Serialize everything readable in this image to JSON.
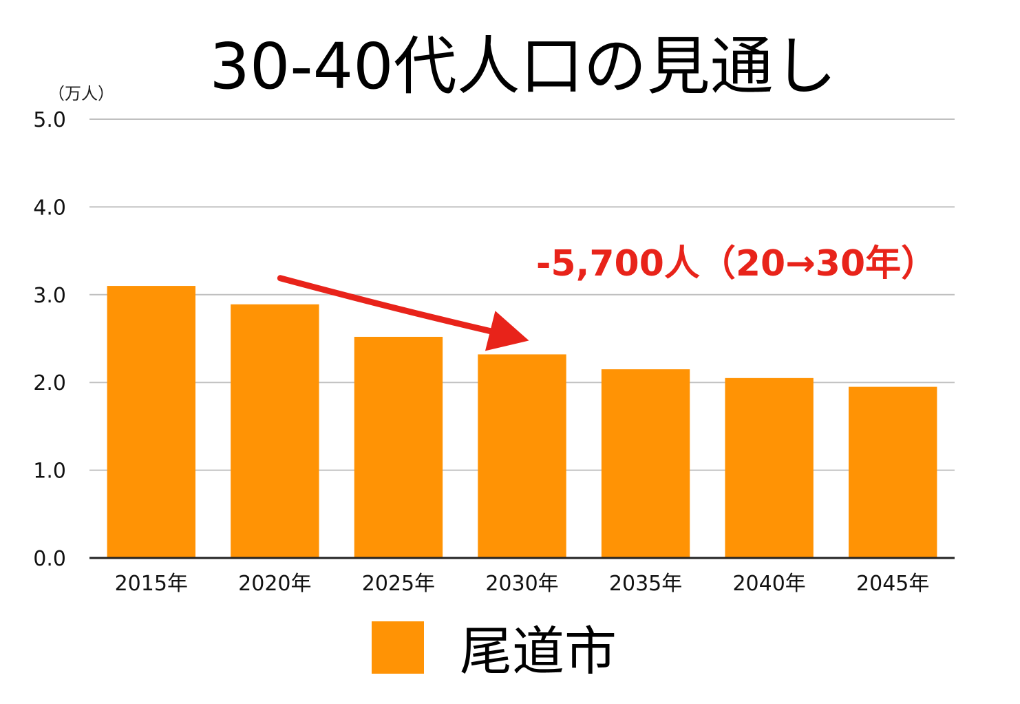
{
  "chart_data": {
    "type": "bar",
    "title": "30-40代人口の見通し",
    "y_unit": "（万人）",
    "categories": [
      "2015年",
      "2020年",
      "2025年",
      "2030年",
      "2035年",
      "2040年",
      "2045年"
    ],
    "series": [
      {
        "name": "尾道市",
        "values": [
          3.1,
          2.89,
          2.52,
          2.32,
          2.15,
          2.05,
          1.95
        ],
        "color": "#ff9305"
      }
    ],
    "ylim": [
      0,
      5
    ],
    "yticks": [
      0,
      1,
      2,
      3,
      4,
      5
    ],
    "ytick_labels": [
      "0.0",
      "1.0",
      "2.0",
      "3.0",
      "4.0",
      "5.0"
    ],
    "grid": true,
    "legend_position": "bottom",
    "annotation": {
      "text": "-5,700人（20→30年）",
      "color": "#e8231a",
      "arrow_from_category": "2020年",
      "arrow_to_category": "2030年"
    },
    "colors": {
      "bar": "#ff9305",
      "grid": "#c0c0c0",
      "axis": "#222222",
      "annotation": "#e8231a"
    }
  }
}
